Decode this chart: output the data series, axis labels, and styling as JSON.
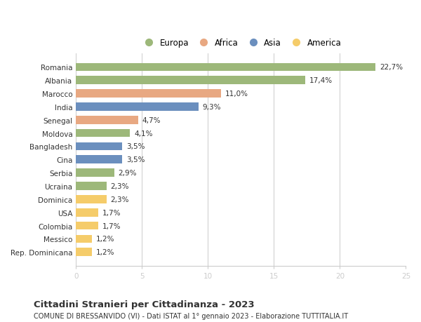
{
  "countries": [
    "Romania",
    "Albania",
    "Marocco",
    "India",
    "Senegal",
    "Moldova",
    "Bangladesh",
    "Cina",
    "Serbia",
    "Ucraina",
    "Dominica",
    "USA",
    "Colombia",
    "Messico",
    "Rep. Dominicana"
  ],
  "values": [
    22.7,
    17.4,
    11.0,
    9.3,
    4.7,
    4.1,
    3.5,
    3.5,
    2.9,
    2.3,
    2.3,
    1.7,
    1.7,
    1.2,
    1.2
  ],
  "labels": [
    "22,7%",
    "17,4%",
    "11,0%",
    "9,3%",
    "4,7%",
    "4,1%",
    "3,5%",
    "3,5%",
    "2,9%",
    "2,3%",
    "2,3%",
    "1,7%",
    "1,7%",
    "1,2%",
    "1,2%"
  ],
  "continents": [
    "Europa",
    "Europa",
    "Africa",
    "Asia",
    "Africa",
    "Europa",
    "Asia",
    "Asia",
    "Europa",
    "Europa",
    "America",
    "America",
    "America",
    "America",
    "America"
  ],
  "continent_colors": {
    "Europa": "#9db87a",
    "Africa": "#e8a882",
    "Asia": "#6b8fbe",
    "America": "#f5cc6a"
  },
  "title": "Cittadini Stranieri per Cittadinanza - 2023",
  "subtitle": "COMUNE DI BRESSANVIDO (VI) - Dati ISTAT al 1° gennaio 2023 - Elaborazione TUTTITALIA.IT",
  "xlim": [
    0,
    25
  ],
  "xticks": [
    0,
    5,
    10,
    15,
    20,
    25
  ],
  "background_color": "#ffffff",
  "bar_height": 0.62,
  "grid_color": "#cccccc",
  "text_color": "#333333",
  "label_fontsize": 7.5,
  "tick_fontsize": 7.5,
  "title_fontsize": 9.5,
  "subtitle_fontsize": 7
}
